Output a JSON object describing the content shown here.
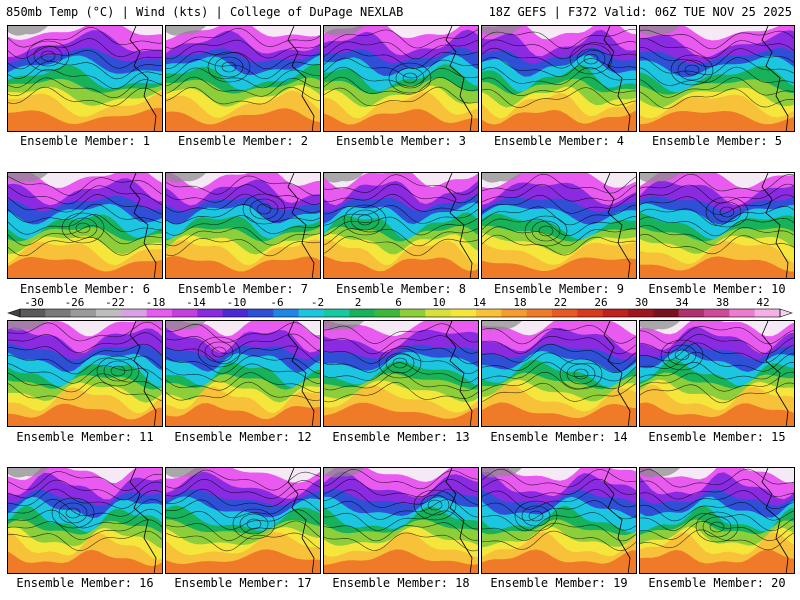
{
  "header": {
    "left": "850mb Temp (°C) | Wind (kts) | College of DuPage NEXLAB",
    "right": "18Z GEFS | F372 Valid: 06Z TUE NOV 25 2025"
  },
  "members": [
    "Ensemble Member: 1",
    "Ensemble Member: 2",
    "Ensemble Member: 3",
    "Ensemble Member: 4",
    "Ensemble Member: 5",
    "Ensemble Member: 6",
    "Ensemble Member: 7",
    "Ensemble Member: 8",
    "Ensemble Member: 9",
    "Ensemble Member: 10",
    "Ensemble Member: 11",
    "Ensemble Member: 12",
    "Ensemble Member: 13",
    "Ensemble Member: 14",
    "Ensemble Member: 15",
    "Ensemble Member: 16",
    "Ensemble Member: 17",
    "Ensemble Member: 18",
    "Ensemble Member: 19",
    "Ensemble Member: 20"
  ],
  "colorbar": {
    "ticks": [
      "-30",
      "-26",
      "-22",
      "-18",
      "-14",
      "-10",
      "-6",
      "-2",
      "2",
      "6",
      "10",
      "14",
      "18",
      "22",
      "26",
      "30",
      "34",
      "38",
      "42"
    ],
    "colors": [
      "#5a5a5a",
      "#7a7a7a",
      "#9a9a9a",
      "#bdbdbd",
      "#d9a0e6",
      "#e85af0",
      "#c53ee0",
      "#8a2be2",
      "#4b2ad6",
      "#2e4fd6",
      "#1f86e8",
      "#1cc6e0",
      "#16c9a0",
      "#18b25a",
      "#3cb83a",
      "#8ccf3a",
      "#d8e03a",
      "#f5e63c",
      "#f7c23a",
      "#f59b2f",
      "#ef7a28",
      "#e85a22",
      "#d93a1e",
      "#c0201e",
      "#a0151e",
      "#7a1020",
      "#b03070",
      "#d04a9a",
      "#f07ad0",
      "#f5b0e6"
    ]
  }
}
